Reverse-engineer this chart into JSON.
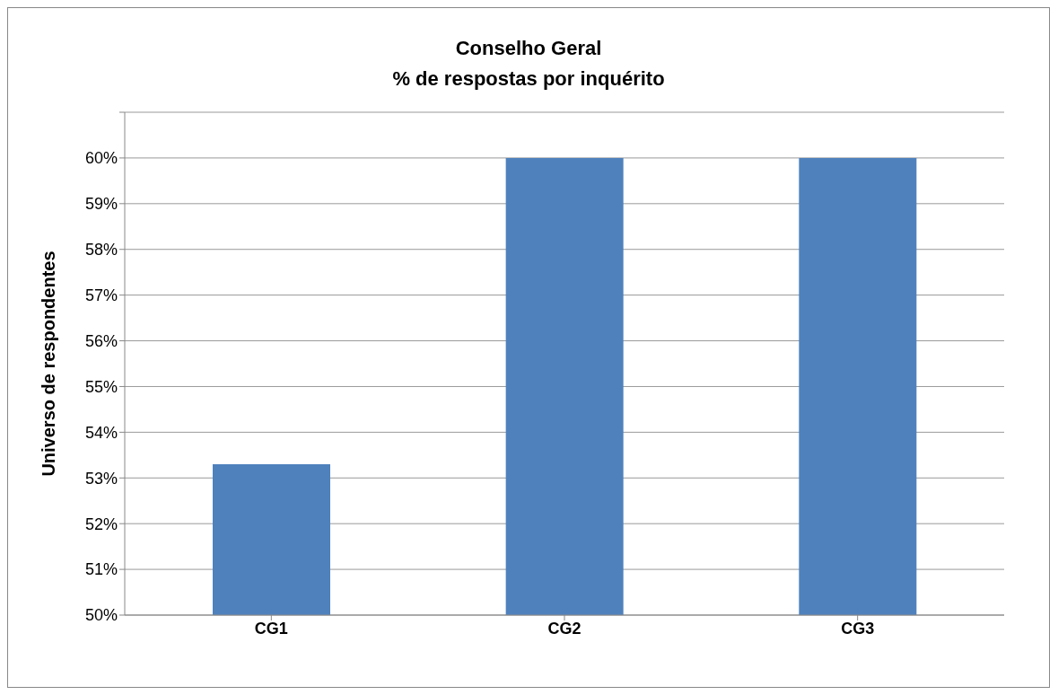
{
  "chart_data": {
    "type": "bar",
    "title": "Conselho Geral\n% de respostas por inquérito",
    "ylabel": "Universo de respondentes",
    "categories": [
      "CG1",
      "CG2",
      "CG3"
    ],
    "values": [
      53.3,
      60,
      60
    ],
    "color": "#4f81bd",
    "ylim": [
      50,
      61
    ],
    "yticks": [
      {
        "value": 50,
        "label": "50%"
      },
      {
        "value": 51,
        "label": "51%"
      },
      {
        "value": 52,
        "label": "52%"
      },
      {
        "value": 53,
        "label": "53%"
      },
      {
        "value": 54,
        "label": "54%"
      },
      {
        "value": 55,
        "label": "55%"
      },
      {
        "value": 56,
        "label": "56%"
      },
      {
        "value": 57,
        "label": "57%"
      },
      {
        "value": 58,
        "label": "58%"
      },
      {
        "value": 59,
        "label": "59%"
      },
      {
        "value": 60,
        "label": "60%"
      },
      {
        "value": 61,
        "label": null
      }
    ],
    "grid": "y",
    "legend": false
  }
}
